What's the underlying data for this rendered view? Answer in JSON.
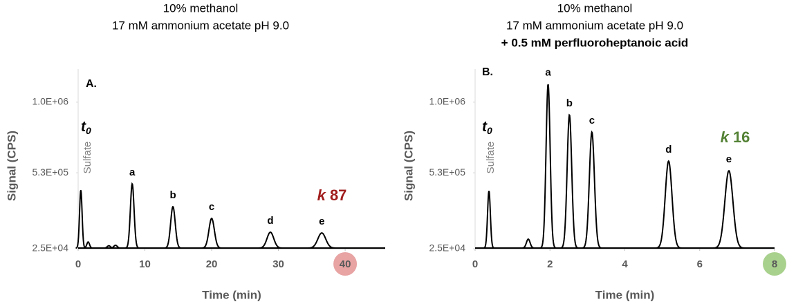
{
  "chart_data": [
    {
      "type": "chromatogram",
      "panel_label": "A.",
      "title": [
        "10% methanol",
        "17 mM ammonium acetate pH 9.0"
      ],
      "xlabel": "Time (min)",
      "ylabel": "Signal (CPS)",
      "xlim": [
        0,
        46
      ],
      "xticks": [
        0,
        10,
        20,
        30,
        40
      ],
      "ylim": [
        25000,
        1220000
      ],
      "yticks": [
        {
          "value": 25000,
          "label": "2.5E+04"
        },
        {
          "value": 530000,
          "label": "5.3E+05"
        },
        {
          "value": 1000000,
          "label": "1.0E+06"
        }
      ],
      "highlighted_xtick": 40,
      "highlight_color": "#e8a3a3",
      "line_color": "#000000",
      "t0": {
        "text": "t",
        "subscript": "0"
      },
      "t0_note": "Sulfate",
      "k_label": {
        "symbol": "k",
        "value": 87,
        "color": "#a01c1c"
      },
      "peaks": [
        {
          "label": null,
          "x": 0.4,
          "height": 415000
        },
        {
          "label": null,
          "x": 1.5,
          "height": 70000
        },
        {
          "label": null,
          "x": 4.6,
          "height": 45000
        },
        {
          "label": null,
          "x": 5.6,
          "height": 48000
        },
        {
          "label": "a",
          "x": 8.1,
          "height": 457000
        },
        {
          "label": "b",
          "x": 14.2,
          "height": 305000
        },
        {
          "label": "c",
          "x": 20.0,
          "height": 227000
        },
        {
          "label": "d",
          "x": 28.8,
          "height": 135000
        },
        {
          "label": "e",
          "x": 36.5,
          "height": 130000
        }
      ]
    },
    {
      "type": "chromatogram",
      "panel_label": "B.",
      "title": [
        "10% methanol",
        "17 mM ammonium acetate pH 9.0"
      ],
      "subtitle_bold": "+ 0.5 mM perfluoroheptanoic acid",
      "xlabel": "Time (min)",
      "ylabel": "Signal (CPS)",
      "xlim": [
        0,
        8
      ],
      "xticks": [
        0,
        2,
        4,
        6,
        8
      ],
      "ylim": [
        25000,
        1220000
      ],
      "yticks": [
        {
          "value": 25000,
          "label": "2.5E+04"
        },
        {
          "value": 530000,
          "label": "5.3E+05"
        },
        {
          "value": 1000000,
          "label": "1.0E+06"
        }
      ],
      "highlighted_xtick": 8,
      "highlight_color": "#a9d18e",
      "line_color": "#000000",
      "t0": {
        "text": "t",
        "subscript": "0"
      },
      "t0_note": "Sulfate",
      "k_label": {
        "symbol": "k",
        "value": 16,
        "color": "#548235"
      },
      "peaks": [
        {
          "label": null,
          "x": 0.37,
          "height": 410000
        },
        {
          "label": null,
          "x": 1.42,
          "height": 89000
        },
        {
          "label": "a",
          "x": 1.95,
          "height": 1120000
        },
        {
          "label": "b",
          "x": 2.52,
          "height": 916000
        },
        {
          "label": "c",
          "x": 3.12,
          "height": 801000
        },
        {
          "label": "d",
          "x": 5.17,
          "height": 608000
        },
        {
          "label": "e",
          "x": 6.78,
          "height": 544000
        }
      ]
    }
  ]
}
